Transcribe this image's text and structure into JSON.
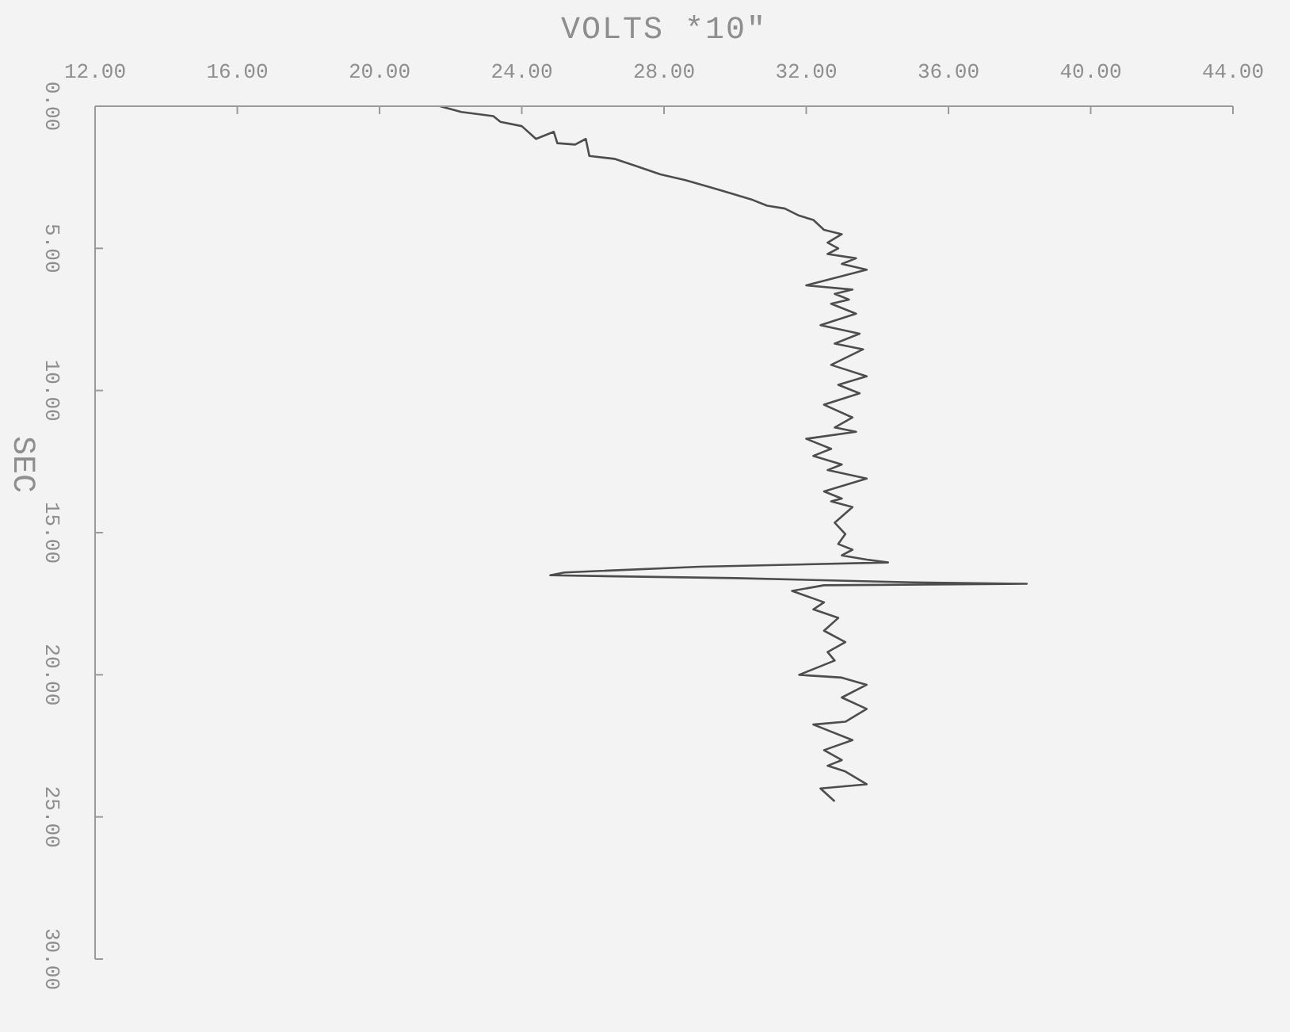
{
  "chart_data": {
    "type": "line",
    "xlabel": "VOLTS *10\"",
    "ylabel": "SEC",
    "xlim": [
      12,
      44
    ],
    "xticks": [
      {
        "value": 12,
        "label": "12.00"
      },
      {
        "value": 16,
        "label": "16.00"
      },
      {
        "value": 20,
        "label": "20.00"
      },
      {
        "value": 24,
        "label": "24.00"
      },
      {
        "value": 28,
        "label": "28.00"
      },
      {
        "value": 32,
        "label": "32.00"
      },
      {
        "value": 36,
        "label": "36.00"
      },
      {
        "value": 40,
        "label": "40.00"
      },
      {
        "value": 44,
        "label": "44.00"
      }
    ],
    "ylim": [
      30,
      0
    ],
    "yticks": [
      {
        "value": 0,
        "label": "0.00"
      },
      {
        "value": 5,
        "label": "5.00"
      },
      {
        "value": 10,
        "label": "10.00"
      },
      {
        "value": 15,
        "label": "15.00"
      },
      {
        "value": 20,
        "label": "20.00"
      },
      {
        "value": 25,
        "label": "25.00"
      },
      {
        "value": 30,
        "label": "30.00"
      }
    ],
    "line_style": "solid",
    "series": [
      {
        "color": "#4d4d4d",
        "x": [
          21.7,
          22.3,
          23.2,
          23.4,
          24.0,
          24.4,
          24.9,
          25.0,
          25.5,
          25.8,
          25.9,
          26.6,
          27.2,
          27.9,
          28.6,
          29.3,
          29.7,
          30.5,
          30.9,
          31.4,
          31.8,
          32.2,
          32.5,
          33.0,
          32.6,
          32.9,
          32.6,
          33.4,
          33.0,
          33.7,
          32.0,
          33.3,
          32.8,
          33.2,
          32.7,
          33.4,
          32.4,
          33.5,
          32.8,
          33.6,
          32.7,
          33.7,
          32.9,
          33.5,
          32.5,
          33.3,
          32.8,
          33.4,
          32.0,
          32.7,
          32.2,
          33.0,
          32.6,
          33.7,
          32.5,
          33.0,
          32.7,
          33.3,
          32.8,
          33.1,
          32.9,
          33.3,
          33.0,
          33.7,
          34.3,
          29.0,
          25.2,
          24.8,
          30.0,
          35.0,
          38.2,
          32.5,
          31.6,
          32.5,
          32.2,
          32.9,
          32.5,
          33.1,
          32.6,
          32.8,
          31.8,
          33.0,
          33.7,
          33.0,
          33.7,
          33.1,
          32.2,
          33.3,
          32.5,
          33.0,
          32.6,
          33.1,
          33.7,
          32.4,
          32.8
        ],
        "values": [
          0,
          0.2,
          0.35,
          0.55,
          0.7,
          1.15,
          0.9,
          1.3,
          1.35,
          1.15,
          1.75,
          1.85,
          2.1,
          2.4,
          2.6,
          2.85,
          3.0,
          3.3,
          3.5,
          3.6,
          3.85,
          4.0,
          4.35,
          4.5,
          4.8,
          5.0,
          5.2,
          5.35,
          5.55,
          5.75,
          6.3,
          6.45,
          6.6,
          6.8,
          6.95,
          7.3,
          7.7,
          8.0,
          8.35,
          8.55,
          9.1,
          9.5,
          9.8,
          10.1,
          10.5,
          10.95,
          11.3,
          11.45,
          11.7,
          12.05,
          12.3,
          12.6,
          12.8,
          13.1,
          13.55,
          13.8,
          13.9,
          14.1,
          14.65,
          15.05,
          15.4,
          15.6,
          15.8,
          15.95,
          16.05,
          16.2,
          16.4,
          16.5,
          16.6,
          16.75,
          16.8,
          16.85,
          17.05,
          17.45,
          17.7,
          18.0,
          18.45,
          18.85,
          19.2,
          19.5,
          20.0,
          20.1,
          20.35,
          20.8,
          21.2,
          21.65,
          21.75,
          22.3,
          22.65,
          23.0,
          23.2,
          23.4,
          23.85,
          24.0,
          24.45
        ]
      }
    ]
  }
}
